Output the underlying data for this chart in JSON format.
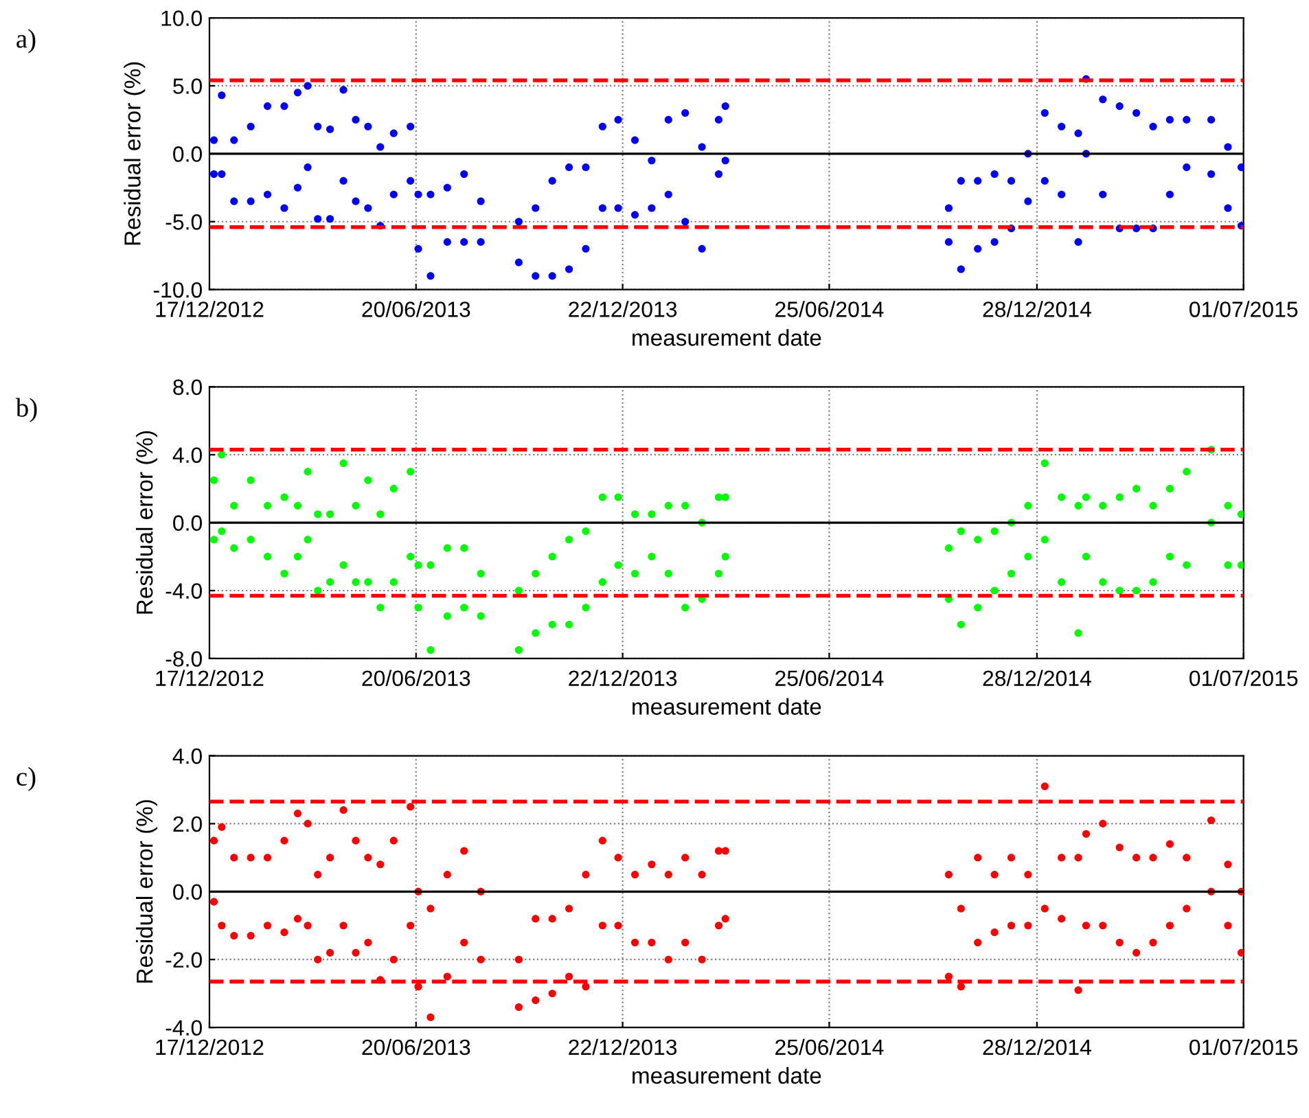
{
  "chart_data": [
    {
      "type": "scatter",
      "annotations": [
        "a)"
      ],
      "xlabel": "measurement date",
      "ylabel": "Residual error (%)",
      "marker": "circle",
      "grid": true,
      "xlim": [
        "2012-12-17",
        "2015-07-01"
      ],
      "xticks": [
        {
          "value": "2012-12-17",
          "label": "17/12/2012"
        },
        {
          "value": "2013-06-20",
          "label": "20/06/2013"
        },
        {
          "value": "2013-12-22",
          "label": "22/12/2013"
        },
        {
          "value": "2014-06-25",
          "label": "25/06/2014"
        },
        {
          "value": "2014-12-28",
          "label": "28/12/2014"
        },
        {
          "value": "2015-07-01",
          "label": "01/07/2015"
        }
      ],
      "ylim": [
        -10,
        10
      ],
      "yticks": [
        {
          "value": -10,
          "label": "-10.0"
        },
        {
          "value": -5,
          "label": "-5.0"
        },
        {
          "value": 0,
          "label": "0.0"
        },
        {
          "value": 5,
          "label": "5.0"
        },
        {
          "value": 10,
          "label": "10.0"
        }
      ],
      "ref_lines": [
        {
          "axis": "y",
          "value": 0,
          "color": "#000000",
          "line_style": "solid"
        },
        {
          "axis": "y",
          "value": 5.4,
          "color": "#ff0000",
          "line_style": "dashed"
        },
        {
          "axis": "y",
          "value": -5.4,
          "color": "#ff0000",
          "line_style": "dashed"
        }
      ],
      "x": [
        "2012-12-21",
        "2012-12-21",
        "2012-12-28",
        "2012-12-28",
        "2013-01-08",
        "2013-01-08",
        "2013-01-23",
        "2013-01-23",
        "2013-02-07",
        "2013-02-07",
        "2013-02-22",
        "2013-02-22",
        "2013-03-06",
        "2013-03-06",
        "2013-03-15",
        "2013-03-15",
        "2013-03-24",
        "2013-03-24",
        "2013-04-04",
        "2013-04-04",
        "2013-04-16",
        "2013-04-16",
        "2013-04-27",
        "2013-04-27",
        "2013-05-08",
        "2013-05-08",
        "2013-05-19",
        "2013-05-19",
        "2013-05-31",
        "2013-05-31",
        "2013-06-15",
        "2013-06-15",
        "2013-06-22",
        "2013-06-22",
        "2013-07-03",
        "2013-07-03",
        "2013-07-18",
        "2013-07-18",
        "2013-08-02",
        "2013-08-02",
        "2013-08-17",
        "2013-08-17",
        "2013-09-20",
        "2013-09-20",
        "2013-10-05",
        "2013-10-05",
        "2013-10-20",
        "2013-10-20",
        "2013-11-04",
        "2013-11-04",
        "2013-11-19",
        "2013-11-19",
        "2013-12-04",
        "2013-12-04",
        "2013-12-18",
        "2013-12-18",
        "2014-01-02",
        "2014-01-02",
        "2014-01-17",
        "2014-01-17",
        "2014-02-01",
        "2014-02-01",
        "2014-02-16",
        "2014-02-16",
        "2014-03-03",
        "2014-03-03",
        "2014-03-18",
        "2014-03-18",
        "2014-03-24",
        "2014-03-24",
        "2014-10-10",
        "2014-10-10",
        "2014-10-21",
        "2014-10-21",
        "2014-11-05",
        "2014-11-05",
        "2014-11-20",
        "2014-11-20",
        "2014-12-05",
        "2014-12-05",
        "2014-12-20",
        "2014-12-20",
        "2015-01-04",
        "2015-01-04",
        "2015-01-19",
        "2015-01-19",
        "2015-02-03",
        "2015-02-03",
        "2015-02-10",
        "2015-02-10",
        "2015-02-25",
        "2015-02-25",
        "2015-03-12",
        "2015-03-12",
        "2015-03-27",
        "2015-03-27",
        "2015-04-11",
        "2015-04-11",
        "2015-04-26",
        "2015-04-26",
        "2015-05-11",
        "2015-05-11",
        "2015-06-02",
        "2015-06-02",
        "2015-06-17",
        "2015-06-17",
        "2015-06-29",
        "2015-06-29"
      ],
      "series": [
        {
          "color": "#0000ff",
          "values": [
            -1.5,
            1.0,
            -1.5,
            4.3,
            -3.5,
            1.0,
            -3.5,
            2.0,
            -3.0,
            3.5,
            -4.0,
            3.5,
            -2.5,
            4.5,
            -1.0,
            5.0,
            -4.8,
            2.0,
            -4.8,
            1.8,
            -2.0,
            4.7,
            -3.5,
            2.5,
            -4.0,
            2.0,
            -5.3,
            0.5,
            -3.0,
            1.5,
            -2.0,
            2.0,
            -7.0,
            -3.0,
            -9.0,
            -3.0,
            -6.5,
            -2.5,
            -6.5,
            -1.5,
            -6.5,
            -3.5,
            -8.0,
            -5.0,
            -9.0,
            -4.0,
            -9.0,
            -2.0,
            -8.5,
            -1.0,
            -7.0,
            -1.0,
            -4.0,
            2.0,
            -4.0,
            2.5,
            -4.5,
            1.0,
            -4.0,
            -0.5,
            -3.0,
            2.5,
            -5.0,
            3.0,
            -7.0,
            0.5,
            -1.5,
            2.5,
            -0.5,
            3.5,
            -6.5,
            -4.0,
            -8.5,
            -2.0,
            -7.0,
            -2.0,
            -6.5,
            -1.5,
            -5.5,
            -2.0,
            -3.5,
            0.0,
            -2.0,
            3.0,
            -3.0,
            2.0,
            -6.5,
            1.5,
            0.0,
            5.5,
            -3.0,
            4.0,
            -5.5,
            3.5,
            -5.5,
            3.0,
            -5.5,
            2.0,
            -3.0,
            2.5,
            -1.0,
            2.5,
            -1.5,
            2.5,
            -4.0,
            0.5,
            -5.3,
            -1.0
          ]
        }
      ]
    },
    {
      "type": "scatter",
      "annotations": [
        "b)"
      ],
      "xlabel": "measurement date",
      "ylabel": "Residual error (%)",
      "marker": "circle",
      "grid": true,
      "xlim": [
        "2012-12-17",
        "2015-07-01"
      ],
      "xticks": [
        {
          "value": "2012-12-17",
          "label": "17/12/2012"
        },
        {
          "value": "2013-06-20",
          "label": "20/06/2013"
        },
        {
          "value": "2013-12-22",
          "label": "22/12/2013"
        },
        {
          "value": "2014-06-25",
          "label": "25/06/2014"
        },
        {
          "value": "2014-12-28",
          "label": "28/12/2014"
        },
        {
          "value": "2015-07-01",
          "label": "01/07/2015"
        }
      ],
      "ylim": [
        -8,
        8
      ],
      "yticks": [
        {
          "value": -8,
          "label": "-8.0"
        },
        {
          "value": -4,
          "label": "-4.0"
        },
        {
          "value": 0,
          "label": "0.0"
        },
        {
          "value": 4,
          "label": "4.0"
        },
        {
          "value": 8,
          "label": "8.0"
        }
      ],
      "ref_lines": [
        {
          "axis": "y",
          "value": 0,
          "color": "#000000",
          "line_style": "solid"
        },
        {
          "axis": "y",
          "value": 4.3,
          "color": "#ff0000",
          "line_style": "dashed"
        },
        {
          "axis": "y",
          "value": -4.3,
          "color": "#ff0000",
          "line_style": "dashed"
        }
      ],
      "x": [
        "2012-12-21",
        "2012-12-21",
        "2012-12-28",
        "2012-12-28",
        "2013-01-08",
        "2013-01-08",
        "2013-01-23",
        "2013-01-23",
        "2013-02-07",
        "2013-02-07",
        "2013-02-22",
        "2013-02-22",
        "2013-03-06",
        "2013-03-06",
        "2013-03-15",
        "2013-03-15",
        "2013-03-24",
        "2013-03-24",
        "2013-04-04",
        "2013-04-04",
        "2013-04-16",
        "2013-04-16",
        "2013-04-27",
        "2013-04-27",
        "2013-05-08",
        "2013-05-08",
        "2013-05-19",
        "2013-05-19",
        "2013-05-31",
        "2013-05-31",
        "2013-06-15",
        "2013-06-15",
        "2013-06-22",
        "2013-06-22",
        "2013-07-03",
        "2013-07-03",
        "2013-07-18",
        "2013-07-18",
        "2013-08-02",
        "2013-08-02",
        "2013-08-17",
        "2013-08-17",
        "2013-09-20",
        "2013-09-20",
        "2013-10-05",
        "2013-10-05",
        "2013-10-20",
        "2013-10-20",
        "2013-11-04",
        "2013-11-04",
        "2013-11-19",
        "2013-11-19",
        "2013-12-04",
        "2013-12-04",
        "2013-12-18",
        "2013-12-18",
        "2014-01-02",
        "2014-01-02",
        "2014-01-17",
        "2014-01-17",
        "2014-02-01",
        "2014-02-01",
        "2014-02-16",
        "2014-02-16",
        "2014-03-03",
        "2014-03-03",
        "2014-03-18",
        "2014-03-18",
        "2014-03-24",
        "2014-03-24",
        "2014-10-10",
        "2014-10-10",
        "2014-10-21",
        "2014-10-21",
        "2014-11-05",
        "2014-11-05",
        "2014-11-20",
        "2014-11-20",
        "2014-12-05",
        "2014-12-05",
        "2014-12-20",
        "2014-12-20",
        "2015-01-04",
        "2015-01-04",
        "2015-01-19",
        "2015-01-19",
        "2015-02-03",
        "2015-02-03",
        "2015-02-10",
        "2015-02-10",
        "2015-02-25",
        "2015-02-25",
        "2015-03-12",
        "2015-03-12",
        "2015-03-27",
        "2015-03-27",
        "2015-04-11",
        "2015-04-11",
        "2015-04-26",
        "2015-04-26",
        "2015-05-11",
        "2015-05-11",
        "2015-06-02",
        "2015-06-02",
        "2015-06-17",
        "2015-06-17",
        "2015-06-29",
        "2015-06-29"
      ],
      "series": [
        {
          "color": "#00ff00",
          "values": [
            -1.0,
            2.5,
            -0.5,
            4.0,
            -1.5,
            1.0,
            -1.0,
            2.5,
            -2.0,
            1.0,
            -3.0,
            1.5,
            -2.0,
            1.0,
            -1.0,
            3.0,
            -4.0,
            0.5,
            -3.5,
            0.5,
            -2.5,
            3.5,
            -3.5,
            1.0,
            -3.5,
            2.5,
            -5.0,
            0.5,
            -3.5,
            2.0,
            -2.0,
            3.0,
            -5.0,
            -2.5,
            -7.5,
            -2.5,
            -5.5,
            -1.5,
            -5.0,
            -1.5,
            -5.5,
            -3.0,
            -7.5,
            -4.0,
            -6.5,
            -3.0,
            -6.0,
            -2.0,
            -6.0,
            -1.0,
            -5.0,
            -0.5,
            -3.5,
            1.5,
            -2.5,
            1.5,
            -3.0,
            0.5,
            -2.0,
            0.5,
            -3.0,
            1.0,
            -5.0,
            1.0,
            -4.5,
            0.0,
            -3.0,
            1.5,
            -2.0,
            1.5,
            -4.5,
            -1.5,
            -6.0,
            -0.5,
            -5.0,
            -1.0,
            -4.0,
            -0.5,
            -3.0,
            0.0,
            -2.0,
            1.0,
            -1.0,
            3.5,
            -3.5,
            1.5,
            -6.5,
            1.0,
            -2.0,
            1.5,
            -3.5,
            1.0,
            -4.0,
            1.5,
            -4.0,
            2.0,
            -3.5,
            1.0,
            -2.0,
            2.0,
            -2.5,
            3.0,
            0.0,
            4.3,
            -2.5,
            1.0,
            -2.5,
            0.5
          ]
        }
      ]
    },
    {
      "type": "scatter",
      "annotations": [
        "c)"
      ],
      "xlabel": "measurement date",
      "ylabel": "Residual error (%)",
      "marker": "circle",
      "grid": true,
      "xlim": [
        "2012-12-17",
        "2015-07-01"
      ],
      "xticks": [
        {
          "value": "2012-12-17",
          "label": "17/12/2012"
        },
        {
          "value": "2013-06-20",
          "label": "20/06/2013"
        },
        {
          "value": "2013-12-22",
          "label": "22/12/2013"
        },
        {
          "value": "2014-06-25",
          "label": "25/06/2014"
        },
        {
          "value": "2014-12-28",
          "label": "28/12/2014"
        },
        {
          "value": "2015-07-01",
          "label": "01/07/2015"
        }
      ],
      "ylim": [
        -4,
        4
      ],
      "yticks": [
        {
          "value": -4,
          "label": "-4.0"
        },
        {
          "value": -2,
          "label": "-2.0"
        },
        {
          "value": 0,
          "label": "0.0"
        },
        {
          "value": 2,
          "label": "2.0"
        },
        {
          "value": 4,
          "label": "4.0"
        }
      ],
      "ref_lines": [
        {
          "axis": "y",
          "value": 0,
          "color": "#000000",
          "line_style": "solid"
        },
        {
          "axis": "y",
          "value": 2.65,
          "color": "#ff0000",
          "line_style": "dashed"
        },
        {
          "axis": "y",
          "value": -2.65,
          "color": "#ff0000",
          "line_style": "dashed"
        }
      ],
      "x": [
        "2012-12-21",
        "2012-12-21",
        "2012-12-28",
        "2012-12-28",
        "2013-01-08",
        "2013-01-08",
        "2013-01-23",
        "2013-01-23",
        "2013-02-07",
        "2013-02-07",
        "2013-02-22",
        "2013-02-22",
        "2013-03-06",
        "2013-03-06",
        "2013-03-15",
        "2013-03-15",
        "2013-03-24",
        "2013-03-24",
        "2013-04-04",
        "2013-04-04",
        "2013-04-16",
        "2013-04-16",
        "2013-04-27",
        "2013-04-27",
        "2013-05-08",
        "2013-05-08",
        "2013-05-19",
        "2013-05-19",
        "2013-05-31",
        "2013-05-31",
        "2013-06-15",
        "2013-06-15",
        "2013-06-22",
        "2013-06-22",
        "2013-07-03",
        "2013-07-03",
        "2013-07-18",
        "2013-07-18",
        "2013-08-02",
        "2013-08-02",
        "2013-08-17",
        "2013-08-17",
        "2013-09-20",
        "2013-09-20",
        "2013-10-05",
        "2013-10-05",
        "2013-10-20",
        "2013-10-20",
        "2013-11-04",
        "2013-11-04",
        "2013-11-19",
        "2013-11-19",
        "2013-12-04",
        "2013-12-04",
        "2013-12-18",
        "2013-12-18",
        "2014-01-02",
        "2014-01-02",
        "2014-01-17",
        "2014-01-17",
        "2014-02-01",
        "2014-02-01",
        "2014-02-16",
        "2014-02-16",
        "2014-03-03",
        "2014-03-03",
        "2014-03-18",
        "2014-03-18",
        "2014-03-24",
        "2014-03-24",
        "2014-10-10",
        "2014-10-10",
        "2014-10-21",
        "2014-10-21",
        "2014-11-05",
        "2014-11-05",
        "2014-11-20",
        "2014-11-20",
        "2014-12-05",
        "2014-12-05",
        "2014-12-20",
        "2014-12-20",
        "2015-01-04",
        "2015-01-04",
        "2015-01-19",
        "2015-01-19",
        "2015-02-03",
        "2015-02-03",
        "2015-02-10",
        "2015-02-10",
        "2015-02-25",
        "2015-02-25",
        "2015-03-12",
        "2015-03-12",
        "2015-03-27",
        "2015-03-27",
        "2015-04-11",
        "2015-04-11",
        "2015-04-26",
        "2015-04-26",
        "2015-05-11",
        "2015-05-11",
        "2015-06-02",
        "2015-06-02",
        "2015-06-17",
        "2015-06-17",
        "2015-06-29",
        "2015-06-29"
      ],
      "series": [
        {
          "color": "#ff0000",
          "values": [
            -0.3,
            1.5,
            -1.0,
            1.9,
            -1.3,
            1.0,
            -1.3,
            1.0,
            -1.0,
            1.0,
            -1.2,
            1.5,
            -0.8,
            2.3,
            -1.0,
            2.0,
            -2.0,
            0.5,
            -1.8,
            1.0,
            -1.0,
            2.4,
            -1.8,
            1.5,
            -1.5,
            1.0,
            -2.6,
            0.8,
            -2.0,
            1.5,
            -1.0,
            2.5,
            -2.8,
            0.0,
            -3.7,
            -0.5,
            -2.5,
            0.5,
            -1.5,
            1.2,
            -2.0,
            0.0,
            -3.4,
            -2.0,
            -3.2,
            -0.8,
            -3.0,
            -0.8,
            -2.5,
            -0.5,
            -2.8,
            0.5,
            -1.0,
            1.5,
            -1.0,
            1.0,
            -1.5,
            0.5,
            -1.5,
            0.8,
            -2.0,
            0.5,
            -1.5,
            1.0,
            -2.0,
            0.5,
            -1.0,
            1.2,
            -0.8,
            1.2,
            -2.5,
            0.5,
            -2.8,
            -0.5,
            -1.5,
            1.0,
            -1.2,
            0.5,
            -1.0,
            1.0,
            -1.0,
            0.5,
            -0.5,
            3.1,
            -0.8,
            1.0,
            -2.9,
            1.0,
            -1.0,
            1.7,
            -1.0,
            2.0,
            -1.5,
            1.3,
            -1.8,
            1.0,
            -1.5,
            1.0,
            -1.0,
            1.4,
            -0.5,
            1.0,
            0.0,
            2.1,
            -1.0,
            0.8,
            -1.8,
            0.0
          ]
        }
      ]
    }
  ]
}
